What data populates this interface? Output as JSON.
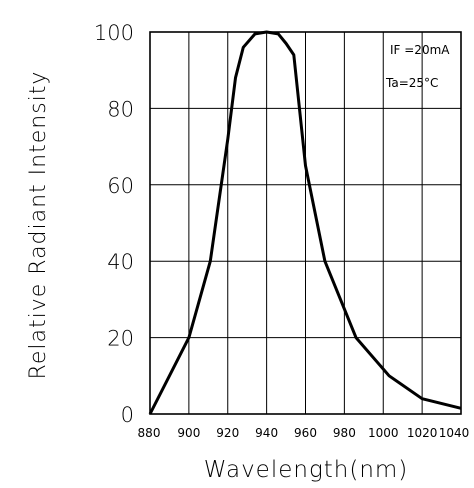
{
  "chart_data": {
    "type": "line",
    "title": "",
    "xlabel": "Wavelength(nm)",
    "ylabel": "Relative Radiant Intensity",
    "xlim": [
      880,
      1040
    ],
    "ylim": [
      0,
      100
    ],
    "x_ticks": [
      880,
      900,
      920,
      940,
      960,
      980,
      1000,
      1020,
      1040
    ],
    "y_ticks": [
      0,
      20,
      40,
      60,
      80,
      100
    ],
    "grid": true,
    "annotations": [
      "IF =20mA",
      "Ta=25°C"
    ],
    "series": [
      {
        "x": [
          880,
          900,
          911,
          920,
          924,
          928,
          934,
          940,
          946,
          950,
          954,
          960,
          970,
          986,
          1003,
          1020,
          1040
        ],
        "values": [
          0,
          20,
          40,
          72,
          88,
          96,
          99.5,
          100,
          99.5,
          97,
          94,
          65,
          40,
          20,
          10,
          4,
          1.5
        ]
      }
    ]
  }
}
